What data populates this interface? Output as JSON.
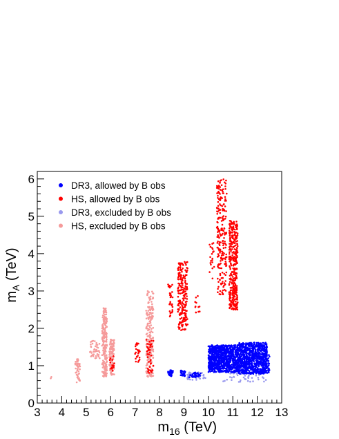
{
  "chart_data": {
    "type": "scatter",
    "title": "",
    "xlabel": {
      "main": "m",
      "sub": "16",
      "unit": " (TeV)"
    },
    "ylabel": {
      "main": "m",
      "sub": "A",
      "unit": " (TeV)"
    },
    "xlim": [
      3,
      13
    ],
    "ylim": [
      0,
      6.2
    ],
    "xticks": [
      3,
      4,
      5,
      6,
      7,
      8,
      9,
      10,
      11,
      12,
      13
    ],
    "yticks": [
      0,
      1,
      2,
      3,
      4,
      5,
      6
    ],
    "grid": false,
    "legend_position": "top-left",
    "series": [
      {
        "name": "DR3, allowed by B obs",
        "color": "#0000ff",
        "clusters": [
          {
            "x": [
              8.35,
              8.55
            ],
            "y": [
              0.72,
              0.88
            ],
            "n": 35
          },
          {
            "x": [
              8.85,
              9.05
            ],
            "y": [
              0.72,
              0.88
            ],
            "n": 25
          },
          {
            "x": [
              9.2,
              9.7
            ],
            "y": [
              0.68,
              0.82
            ],
            "n": 30
          },
          {
            "x": [
              10.0,
              11.2
            ],
            "y": [
              0.82,
              1.55
            ],
            "n": 900
          },
          {
            "x": [
              11.2,
              12.4
            ],
            "y": [
              0.78,
              1.62
            ],
            "n": 900
          },
          {
            "x": [
              12.3,
              12.5
            ],
            "y": [
              0.8,
              1.3
            ],
            "n": 40
          }
        ]
      },
      {
        "name": "HS, allowed by B obs",
        "color": "#ff0000",
        "clusters": [
          {
            "x": [
              7.0,
              7.2
            ],
            "y": [
              1.1,
              1.6
            ],
            "n": 25
          },
          {
            "x": [
              7.45,
              7.75
            ],
            "y": [
              0.75,
              1.7
            ],
            "n": 40
          },
          {
            "x": [
              8.35,
              8.55
            ],
            "y": [
              2.3,
              3.2
            ],
            "n": 30
          },
          {
            "x": [
              8.75,
              9.15
            ],
            "y": [
              1.95,
              3.8
            ],
            "n": 220
          },
          {
            "x": [
              9.45,
              9.65
            ],
            "y": [
              2.4,
              2.9
            ],
            "n": 12
          },
          {
            "x": [
              10.05,
              10.25
            ],
            "y": [
              3.3,
              4.3
            ],
            "n": 20
          },
          {
            "x": [
              10.35,
              10.75
            ],
            "y": [
              2.9,
              6.0
            ],
            "n": 220
          },
          {
            "x": [
              10.85,
              11.2
            ],
            "y": [
              2.5,
              4.9
            ],
            "n": 350
          },
          {
            "x": [
              5.95,
              6.15
            ],
            "y": [
              0.85,
              1.3
            ],
            "n": 15
          }
        ]
      },
      {
        "name": "DR3, excluded by B obs",
        "color": "#9999ee",
        "clusters": [
          {
            "x": [
              9.1,
              9.9
            ],
            "y": [
              0.62,
              0.82
            ],
            "n": 45
          },
          {
            "x": [
              10.6,
              12.4
            ],
            "y": [
              0.55,
              0.82
            ],
            "n": 45
          }
        ]
      },
      {
        "name": "HS, excluded by B obs",
        "color": "#f59a9a",
        "clusters": [
          {
            "x": [
              3.55,
              3.6
            ],
            "y": [
              0.66,
              0.72
            ],
            "n": 2
          },
          {
            "x": [
              4.55,
              4.75
            ],
            "y": [
              0.55,
              1.2
            ],
            "n": 45
          },
          {
            "x": [
              5.15,
              5.55
            ],
            "y": [
              1.2,
              1.7
            ],
            "n": 45
          },
          {
            "x": [
              5.65,
              5.85
            ],
            "y": [
              0.7,
              2.55
            ],
            "n": 220
          },
          {
            "x": [
              5.95,
              6.15
            ],
            "y": [
              0.75,
              1.7
            ],
            "n": 120
          },
          {
            "x": [
              7.45,
              7.75
            ],
            "y": [
              0.7,
              3.0
            ],
            "n": 220
          }
        ]
      }
    ]
  }
}
